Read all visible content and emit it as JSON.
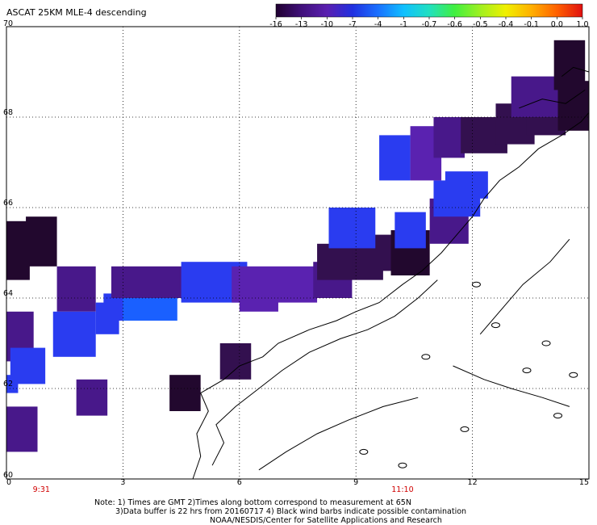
{
  "title": "ASCAT 25KM MLE-4 descending",
  "colorbar": {
    "labels": [
      "-16",
      "-13",
      "-10",
      "-7",
      "-4",
      "-1",
      "-0.7",
      "-0.6",
      "-0.5",
      "-0.4",
      "-0.1",
      "0.0",
      "1.0"
    ],
    "colors": [
      "#200030",
      "#40107a",
      "#5a1fb0",
      "#2030e0",
      "#1a70ff",
      "#10c0ff",
      "#20e0c0",
      "#40f040",
      "#a0f020",
      "#f0f000",
      "#ffb000",
      "#ff6000",
      "#e01010"
    ]
  },
  "axes": {
    "x_ticks": [
      "0",
      "3",
      "6",
      "9",
      "12",
      "15"
    ],
    "y_ticks": [
      "70",
      "68",
      "66",
      "64",
      "62",
      "60"
    ],
    "time_ticks": [
      {
        "lon": 0.9,
        "label": "9:31"
      },
      {
        "lon": 10.2,
        "label": "11:10"
      }
    ],
    "xlim": [
      0,
      15
    ],
    "ylim": [
      60,
      70
    ]
  },
  "notes": {
    "line1": "Note: 1) Times are GMT 2)Times along bottom correspond to measurement at 65N",
    "line2": "3)Data buffer is 22 hrs from 20160717 4) Black wind barbs indicate possible contamination",
    "line3": "NOAA/NESDIS/Center for Satellite Applications and Research"
  },
  "cell_colors": {
    "very_dark": "#22082e",
    "dark": "#33104f",
    "purple": "#48188a",
    "violet": "#5a22b0",
    "blue": "#2a3cf0",
    "bright_blue": "#1a60ff"
  },
  "swath_cells": [
    {
      "lon": 0.0,
      "lat": 64.4,
      "w": 0.6,
      "h": 1.3,
      "c": "very_dark"
    },
    {
      "lon": 0.5,
      "lat": 64.7,
      "w": 0.8,
      "h": 1.1,
      "c": "very_dark"
    },
    {
      "lon": 1.3,
      "lat": 63.7,
      "w": 1.0,
      "h": 1.0,
      "c": "purple"
    },
    {
      "lon": 1.2,
      "lat": 62.7,
      "w": 1.1,
      "h": 1.0,
      "c": "blue"
    },
    {
      "lon": 0.0,
      "lat": 62.6,
      "w": 0.7,
      "h": 1.1,
      "c": "purple"
    },
    {
      "lon": 0.1,
      "lat": 62.1,
      "w": 0.9,
      "h": 0.8,
      "c": "blue"
    },
    {
      "lon": 0.0,
      "lat": 61.9,
      "w": 0.3,
      "h": 0.4,
      "c": "blue"
    },
    {
      "lon": 2.3,
      "lat": 63.2,
      "w": 0.6,
      "h": 0.7,
      "c": "blue"
    },
    {
      "lon": 2.5,
      "lat": 63.5,
      "w": 0.9,
      "h": 0.6,
      "c": "blue"
    },
    {
      "lon": 3.0,
      "lat": 63.5,
      "w": 1.4,
      "h": 0.7,
      "c": "bright_blue"
    },
    {
      "lon": 2.7,
      "lat": 64.0,
      "w": 1.9,
      "h": 0.7,
      "c": "purple"
    },
    {
      "lon": 4.5,
      "lat": 63.9,
      "w": 1.7,
      "h": 0.9,
      "c": "blue"
    },
    {
      "lon": 6.0,
      "lat": 63.7,
      "w": 1.0,
      "h": 0.8,
      "c": "violet"
    },
    {
      "lon": 5.8,
      "lat": 63.9,
      "w": 2.2,
      "h": 0.8,
      "c": "violet"
    },
    {
      "lon": 7.9,
      "lat": 64.0,
      "w": 1.0,
      "h": 0.8,
      "c": "purple"
    },
    {
      "lon": 8.0,
      "lat": 64.4,
      "w": 1.7,
      "h": 0.8,
      "c": "dark"
    },
    {
      "lon": 8.9,
      "lat": 64.6,
      "w": 1.5,
      "h": 0.8,
      "c": "dark"
    },
    {
      "lon": 9.9,
      "lat": 64.5,
      "w": 1.0,
      "h": 1.0,
      "c": "very_dark"
    },
    {
      "lon": 8.3,
      "lat": 65.1,
      "w": 1.2,
      "h": 0.9,
      "c": "blue"
    },
    {
      "lon": 10.0,
      "lat": 65.1,
      "w": 0.8,
      "h": 0.8,
      "c": "blue"
    },
    {
      "lon": 10.9,
      "lat": 65.2,
      "w": 1.0,
      "h": 1.0,
      "c": "purple"
    },
    {
      "lon": 11.0,
      "lat": 65.8,
      "w": 1.2,
      "h": 0.8,
      "c": "blue"
    },
    {
      "lon": 11.3,
      "lat": 66.2,
      "w": 1.1,
      "h": 0.6,
      "c": "blue"
    },
    {
      "lon": 9.6,
      "lat": 66.6,
      "w": 0.8,
      "h": 1.0,
      "c": "blue"
    },
    {
      "lon": 10.4,
      "lat": 66.6,
      "w": 0.8,
      "h": 1.2,
      "c": "violet"
    },
    {
      "lon": 11.0,
      "lat": 67.1,
      "w": 0.8,
      "h": 0.9,
      "c": "purple"
    },
    {
      "lon": 11.7,
      "lat": 67.2,
      "w": 1.2,
      "h": 0.8,
      "c": "dark"
    },
    {
      "lon": 12.6,
      "lat": 67.4,
      "w": 1.0,
      "h": 0.9,
      "c": "dark"
    },
    {
      "lon": 13.4,
      "lat": 67.6,
      "w": 1.0,
      "h": 1.0,
      "c": "dark"
    },
    {
      "lon": 13.0,
      "lat": 68.0,
      "w": 1.3,
      "h": 0.9,
      "c": "purple"
    },
    {
      "lon": 14.2,
      "lat": 67.7,
      "w": 0.8,
      "h": 1.1,
      "c": "very_dark"
    },
    {
      "lon": 14.1,
      "lat": 68.6,
      "w": 0.8,
      "h": 1.1,
      "c": "very_dark"
    },
    {
      "lon": 5.5,
      "lat": 62.2,
      "w": 0.8,
      "h": 0.8,
      "c": "dark"
    },
    {
      "lon": 4.2,
      "lat": 61.5,
      "w": 0.8,
      "h": 0.8,
      "c": "very_dark"
    },
    {
      "lon": 1.8,
      "lat": 61.4,
      "w": 0.8,
      "h": 0.8,
      "c": "purple"
    },
    {
      "lon": 0.0,
      "lat": 60.6,
      "w": 0.8,
      "h": 1.0,
      "c": "purple"
    }
  ]
}
